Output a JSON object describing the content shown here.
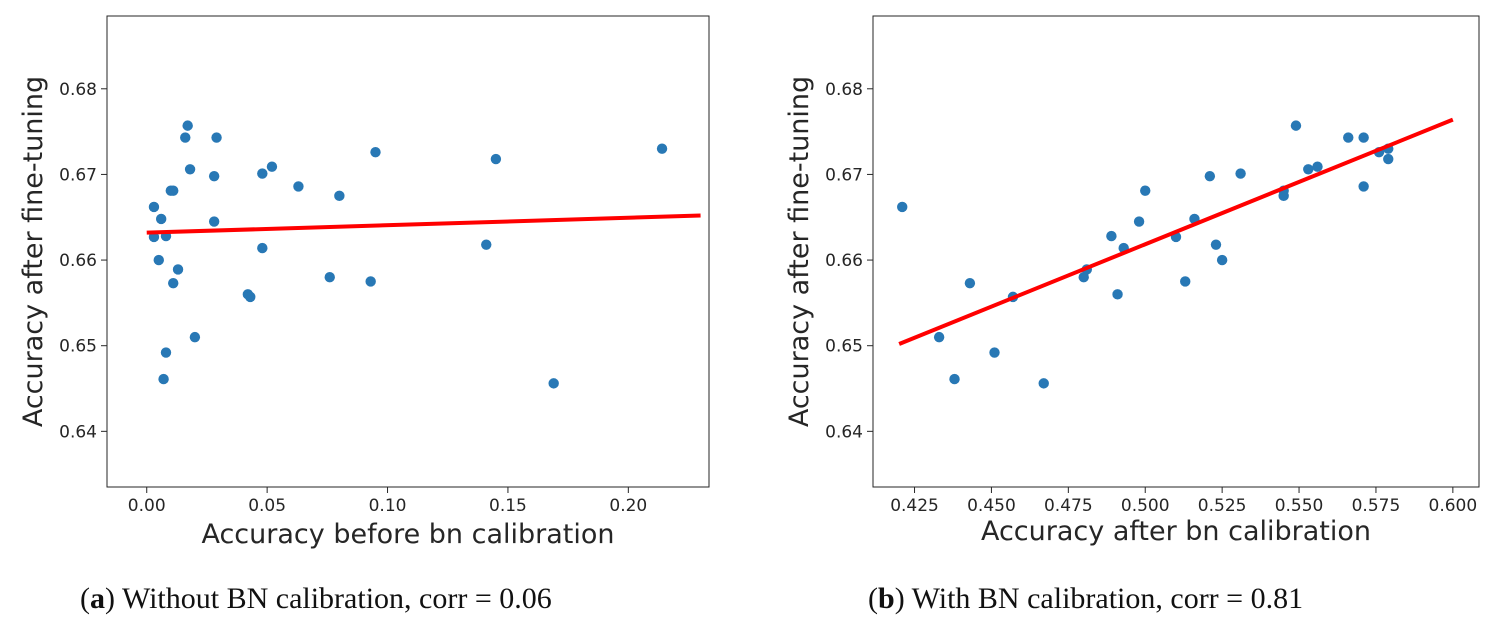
{
  "colors": {
    "points": "#2878b5",
    "fit_line": "#ff0000",
    "axes": "#262626"
  },
  "captions": [
    {
      "letter": "a",
      "text": "Without BN calibration, corr = 0.06"
    },
    {
      "letter": "b",
      "text": "With BN calibration, corr = 0.81"
    }
  ],
  "chart_data": [
    {
      "type": "scatter",
      "title": "",
      "xlabel": "Accuracy before bn calibration",
      "ylabel": "Accuracy after fine-tuning",
      "xlim": [
        -0.0165,
        0.2335
      ],
      "ylim": [
        0.6335,
        0.6885
      ],
      "xticks": [
        0.0,
        0.05,
        0.1,
        0.15,
        0.2
      ],
      "xtick_labels": [
        "0.00",
        "0.05",
        "0.10",
        "0.15",
        "0.20"
      ],
      "yticks": [
        0.64,
        0.65,
        0.66,
        0.67,
        0.68
      ],
      "ytick_labels": [
        "0.64",
        "0.65",
        "0.66",
        "0.67",
        "0.68"
      ],
      "points": [
        [
          0.003,
          0.6662
        ],
        [
          0.003,
          0.6627
        ],
        [
          0.006,
          0.6648
        ],
        [
          0.008,
          0.6628
        ],
        [
          0.005,
          0.66
        ],
        [
          0.008,
          0.6492
        ],
        [
          0.007,
          0.6461
        ],
        [
          0.01,
          0.6681
        ],
        [
          0.011,
          0.6681
        ],
        [
          0.013,
          0.6589
        ],
        [
          0.011,
          0.6573
        ],
        [
          0.016,
          0.6743
        ],
        [
          0.017,
          0.6757
        ],
        [
          0.018,
          0.6706
        ],
        [
          0.02,
          0.651
        ],
        [
          0.028,
          0.6698
        ],
        [
          0.028,
          0.6645
        ],
        [
          0.029,
          0.6743
        ],
        [
          0.042,
          0.656
        ],
        [
          0.043,
          0.6557
        ],
        [
          0.048,
          0.6701
        ],
        [
          0.048,
          0.6614
        ],
        [
          0.052,
          0.6709
        ],
        [
          0.063,
          0.6686
        ],
        [
          0.076,
          0.658
        ],
        [
          0.08,
          0.6675
        ],
        [
          0.093,
          0.6575
        ],
        [
          0.095,
          0.6726
        ],
        [
          0.141,
          0.6618
        ],
        [
          0.145,
          0.6718
        ],
        [
          0.169,
          0.6456
        ],
        [
          0.214,
          0.673
        ]
      ],
      "fit_line": {
        "x": [
          0.0,
          0.23
        ],
        "y": [
          0.6632,
          0.6652
        ]
      }
    },
    {
      "type": "scatter",
      "title": "",
      "xlabel": "Accuracy after bn calibration",
      "ylabel": "Accuracy after fine-tuning",
      "xlim": [
        0.4115,
        0.6085
      ],
      "ylim": [
        0.6335,
        0.6885
      ],
      "xticks": [
        0.425,
        0.45,
        0.475,
        0.5,
        0.525,
        0.55,
        0.575,
        0.6
      ],
      "xtick_labels": [
        "0.425",
        "0.450",
        "0.475",
        "0.500",
        "0.525",
        "0.550",
        "0.575",
        "0.600"
      ],
      "yticks": [
        0.64,
        0.65,
        0.66,
        0.67,
        0.68
      ],
      "ytick_labels": [
        "0.64",
        "0.65",
        "0.66",
        "0.67",
        "0.68"
      ],
      "points": [
        [
          0.421,
          0.6662
        ],
        [
          0.433,
          0.651
        ],
        [
          0.438,
          0.6461
        ],
        [
          0.443,
          0.6573
        ],
        [
          0.451,
          0.6492
        ],
        [
          0.457,
          0.6557
        ],
        [
          0.467,
          0.6456
        ],
        [
          0.48,
          0.658
        ],
        [
          0.481,
          0.6589
        ],
        [
          0.489,
          0.6628
        ],
        [
          0.491,
          0.656
        ],
        [
          0.493,
          0.6614
        ],
        [
          0.498,
          0.6645
        ],
        [
          0.5,
          0.6681
        ],
        [
          0.51,
          0.6627
        ],
        [
          0.513,
          0.6575
        ],
        [
          0.516,
          0.6648
        ],
        [
          0.521,
          0.6698
        ],
        [
          0.523,
          0.6618
        ],
        [
          0.525,
          0.66
        ],
        [
          0.531,
          0.6701
        ],
        [
          0.545,
          0.6681
        ],
        [
          0.545,
          0.6675
        ],
        [
          0.549,
          0.6757
        ],
        [
          0.553,
          0.6706
        ],
        [
          0.556,
          0.6709
        ],
        [
          0.566,
          0.6743
        ],
        [
          0.571,
          0.6743
        ],
        [
          0.571,
          0.6686
        ],
        [
          0.576,
          0.6726
        ],
        [
          0.579,
          0.673
        ],
        [
          0.579,
          0.6718
        ]
      ],
      "fit_line": {
        "x": [
          0.42,
          0.6
        ],
        "y": [
          0.6502,
          0.6764
        ]
      }
    }
  ]
}
